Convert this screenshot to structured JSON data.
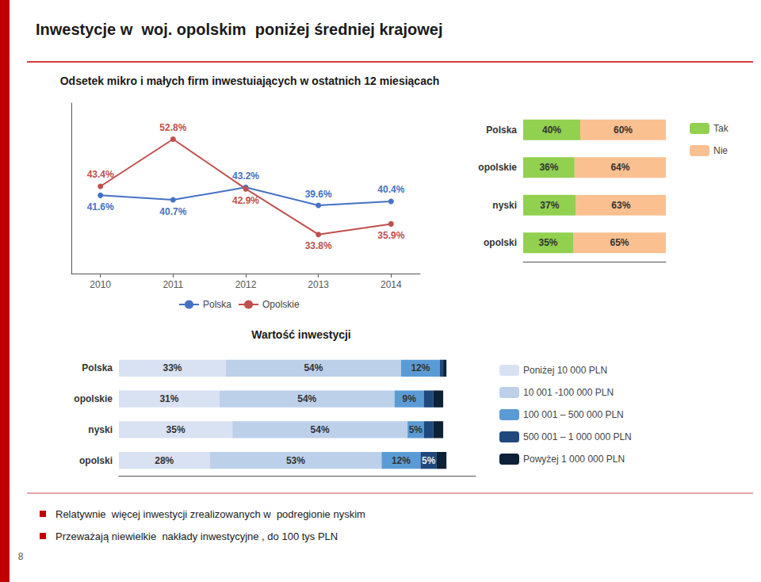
{
  "title": "Inwestycje w  woj. opolskim  poniżej średniej krajowej",
  "annotations": [
    "Relatywnie  więcej inwestycji zrealizowanych w  podregionie nyskim",
    "Przeważają niewielkie  nakłady inwestycyjne , do 100 tys PLN"
  ],
  "page_number": "8",
  "chart_data": [
    {
      "type": "line",
      "title": "Odsetek mikro i małych firm inwestuiających w ostatnich 12 miesiącach",
      "x": [
        2010,
        2011,
        2012,
        2013,
        2014
      ],
      "xlim": [
        2009.6,
        2014.4
      ],
      "xticks": [
        2010,
        2011,
        2012,
        2013,
        2014
      ],
      "ylim": [
        26,
        60
      ],
      "yticks": [],
      "tick_labels": "x",
      "grid": false,
      "legend": "bottom",
      "data_labels": true,
      "series": [
        {
          "name": "Polska",
          "color": "#4472C4",
          "marker": "circle",
          "values": [
            41.6,
            40.7,
            43.2,
            39.6,
            40.4
          ],
          "value_labels": [
            "41.6%",
            "40.7%",
            "43.2%",
            "39.6%",
            "40.4%"
          ]
        },
        {
          "name": "Opolskie",
          "color": "#C0504D",
          "marker": "circle",
          "values": [
            43.4,
            52.8,
            42.9,
            33.8,
            35.9
          ],
          "value_labels": [
            "43.4%",
            "52.8%",
            "42.9%",
            "33.8%",
            "35.9%"
          ]
        }
      ]
    },
    {
      "type": "bar",
      "orientation": "horizontal",
      "stacked": true,
      "categories": [
        "Polska",
        "opolskie",
        "nyski",
        "opolski"
      ],
      "xlim": [
        0,
        100
      ],
      "xticks": [],
      "tick_labels": "y",
      "grid": false,
      "legend": "right",
      "data_labels": true,
      "series": [
        {
          "name": "Tak",
          "color": "#92D050",
          "values": [
            40,
            36,
            37,
            35
          ],
          "value_labels": [
            "40%",
            "36%",
            "37%",
            "35%"
          ]
        },
        {
          "name": "Nie",
          "color": "#FAC090",
          "values": [
            60,
            64,
            63,
            65
          ],
          "value_labels": [
            "60%",
            "64%",
            "63%",
            "65%"
          ]
        }
      ]
    },
    {
      "type": "bar",
      "title": "Wartość inwestycji",
      "orientation": "horizontal",
      "stacked": true,
      "categories": [
        "Polska",
        "opolskie",
        "nyski",
        "opolski"
      ],
      "xlim": [
        0,
        110
      ],
      "xticks": [],
      "tick_labels": "y",
      "grid": false,
      "legend": "right",
      "data_labels": true,
      "series": [
        {
          "name": "Poniżej 10 000 PLN",
          "color": "#D9E2F3",
          "values": [
            33,
            31,
            35,
            28
          ],
          "value_labels": [
            "33%",
            "31%",
            "35%",
            "28%"
          ]
        },
        {
          "name": "10 001 -100 000 PLN",
          "color": "#BDD0EA",
          "values": [
            54,
            54,
            54,
            53
          ],
          "value_labels": [
            "54%",
            "54%",
            "54%",
            "53%"
          ]
        },
        {
          "name": "100 001 – 500 000 PLN",
          "color": "#5B9BD5",
          "values": [
            12,
            9,
            5,
            12
          ],
          "value_labels": [
            "12%",
            "9%",
            "5%",
            "12%"
          ]
        },
        {
          "name": "500 001 – 1 000 000 PLN",
          "color": "#1F497D",
          "values": [
            1,
            3,
            3,
            5
          ],
          "value_labels": [
            null,
            null,
            null,
            "5%"
          ]
        },
        {
          "name": "Powyżej 1 000 000 PLN",
          "color": "#0D2137",
          "values": [
            1,
            3,
            3,
            3
          ],
          "value_labels": [
            null,
            null,
            null,
            null
          ]
        }
      ]
    }
  ]
}
